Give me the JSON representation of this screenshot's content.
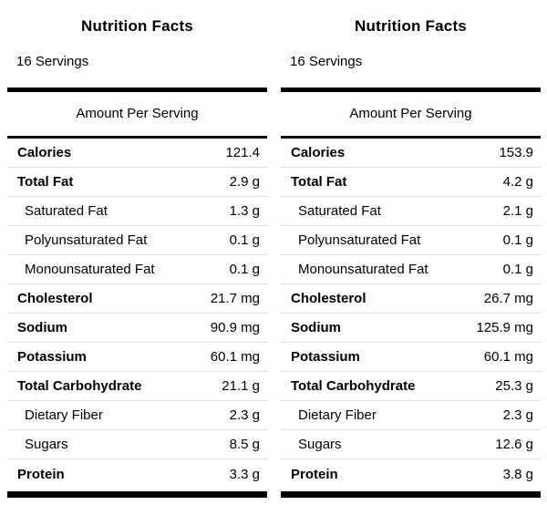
{
  "labels": [
    {
      "title": "Nutrition Facts",
      "servings": "16 Servings",
      "amount_header": "Amount Per Serving",
      "rows": [
        {
          "label": "Calories",
          "value": "121.4",
          "bold": true,
          "indent": false
        },
        {
          "label": "Total Fat",
          "value": "2.9 g",
          "bold": true,
          "indent": false
        },
        {
          "label": "Saturated Fat",
          "value": "1.3 g",
          "bold": false,
          "indent": true
        },
        {
          "label": "Polyunsaturated Fat",
          "value": "0.1 g",
          "bold": false,
          "indent": true
        },
        {
          "label": "Monounsaturated Fat",
          "value": "0.1 g",
          "bold": false,
          "indent": true
        },
        {
          "label": "Cholesterol",
          "value": "21.7 mg",
          "bold": true,
          "indent": false
        },
        {
          "label": "Sodium",
          "value": "90.9 mg",
          "bold": true,
          "indent": false
        },
        {
          "label": "Potassium",
          "value": "60.1 mg",
          "bold": true,
          "indent": false
        },
        {
          "label": "Total Carbohydrate",
          "value": "21.1 g",
          "bold": true,
          "indent": false
        },
        {
          "label": "Dietary Fiber",
          "value": "2.3 g",
          "bold": false,
          "indent": true
        },
        {
          "label": "Sugars",
          "value": "8.5 g",
          "bold": false,
          "indent": true
        },
        {
          "label": "Protein",
          "value": "3.3 g",
          "bold": true,
          "indent": false
        }
      ]
    },
    {
      "title": "Nutrition Facts",
      "servings": "16 Servings",
      "amount_header": "Amount Per Serving",
      "rows": [
        {
          "label": "Calories",
          "value": "153.9",
          "bold": true,
          "indent": false
        },
        {
          "label": "Total Fat",
          "value": "4.2 g",
          "bold": true,
          "indent": false
        },
        {
          "label": "Saturated Fat",
          "value": "2.1 g",
          "bold": false,
          "indent": true
        },
        {
          "label": "Polyunsaturated Fat",
          "value": "0.1 g",
          "bold": false,
          "indent": true
        },
        {
          "label": "Monounsaturated Fat",
          "value": "0.1 g",
          "bold": false,
          "indent": true
        },
        {
          "label": "Cholesterol",
          "value": "26.7 mg",
          "bold": true,
          "indent": false
        },
        {
          "label": "Sodium",
          "value": "125.9 mg",
          "bold": true,
          "indent": false
        },
        {
          "label": "Potassium",
          "value": "60.1 mg",
          "bold": true,
          "indent": false
        },
        {
          "label": "Total Carbohydrate",
          "value": "25.3 g",
          "bold": true,
          "indent": false
        },
        {
          "label": "Dietary Fiber",
          "value": "2.3 g",
          "bold": false,
          "indent": true
        },
        {
          "label": "Sugars",
          "value": "12.6 g",
          "bold": false,
          "indent": true
        },
        {
          "label": "Protein",
          "value": "3.8 g",
          "bold": true,
          "indent": false
        }
      ]
    }
  ],
  "colors": {
    "text": "#000000",
    "divider_bar": "#000000",
    "row_separator": "#d8d8e2",
    "background": "#ffffff"
  }
}
